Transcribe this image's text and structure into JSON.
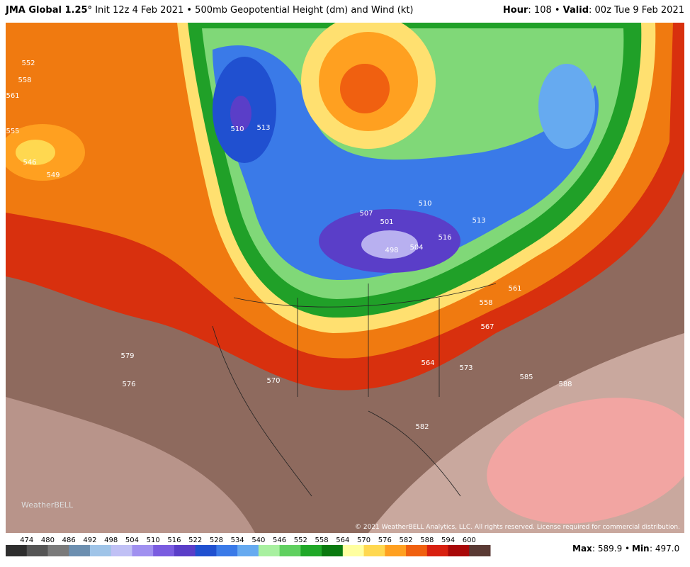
{
  "header": {
    "title": "JMA Global 1.25°",
    "subtitle": "Init 12z 4 Feb 2021 • 500mb Geopotential Height (dm) and Wind (kt)",
    "right": [
      "Hour",
      ": 108 • ",
      "Valid",
      ": 00z Tue 9 Feb 2021"
    ]
  },
  "map": {
    "contour_labels": [
      510,
      513,
      546,
      549,
      552,
      558,
      561,
      555,
      507,
      510,
      501,
      498,
      504,
      516,
      513,
      558,
      561,
      567,
      564,
      573,
      570,
      576,
      585,
      588,
      582,
      579
    ],
    "logo": "WeatherBELL",
    "copyright": "© 2021 WeatherBELL Analytics, LLC. All rights reserved. License required for commercial distribution."
  },
  "colorbar": {
    "labels": [
      474,
      480,
      486,
      492,
      498,
      504,
      510,
      516,
      522,
      528,
      534,
      540,
      546,
      552,
      558,
      564,
      570,
      576,
      582,
      588,
      594,
      600
    ],
    "colors": [
      "#2e2e2e",
      "#555555",
      "#7a7a7a",
      "#6c8fb0",
      "#9fc4e8",
      "#c0c0f5",
      "#a090f0",
      "#7a5ce0",
      "#5a3ec8",
      "#2050d0",
      "#3a7ae8",
      "#66aaf0",
      "#a8f0a0",
      "#60d060",
      "#20a828",
      "#0a7a10",
      "#ffffa0",
      "#ffd850",
      "#ffa020",
      "#f06010",
      "#d82010",
      "#a80808",
      "#5a3a34"
    ]
  },
  "footer": {
    "max_label": "Max",
    "max": ": 589.9 • ",
    "min_label": "Min",
    "min": ": 497.0"
  }
}
